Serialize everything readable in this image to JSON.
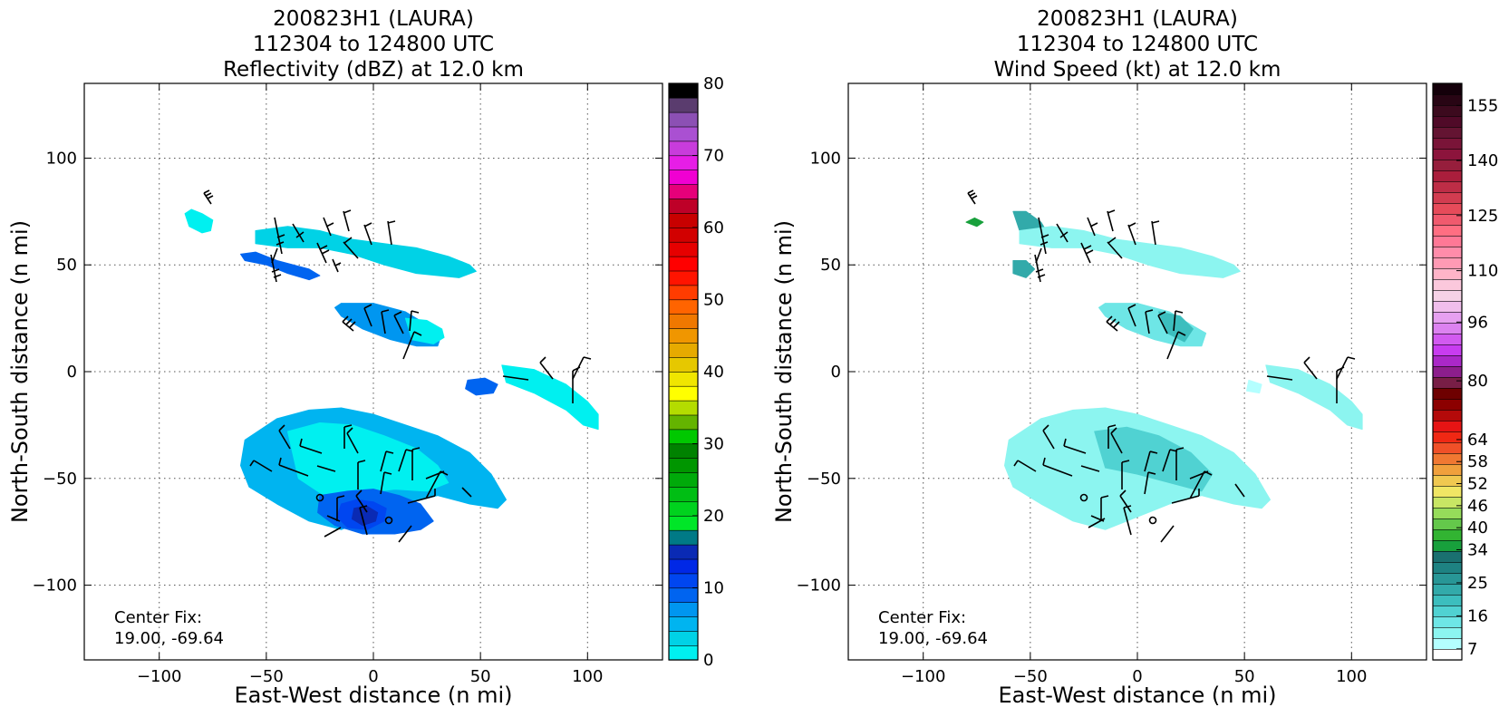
{
  "figure": {
    "panels": [
      {
        "title_lines": [
          "200823H1 (LAURA)",
          "112304 to 124800 UTC",
          "Reflectivity (dBZ) at 12.0 km"
        ],
        "xlabel": "East-West distance (n mi)",
        "ylabel": "North-South distance (n mi)",
        "center_fix_label": "Center Fix:",
        "center_fix_value": "19.00, -69.64"
      },
      {
        "title_lines": [
          "200823H1 (LAURA)",
          "112304 to 124800 UTC",
          "Wind Speed (kt) at 12.0 km"
        ],
        "xlabel": "East-West distance (n mi)",
        "ylabel": "North-South distance (n mi)",
        "center_fix_label": "Center Fix:",
        "center_fix_value": "19.00, -69.64"
      }
    ]
  },
  "chart_data": [
    {
      "type": "heatmap",
      "variable": "Reflectivity (dBZ)",
      "xlim": [
        -135,
        135
      ],
      "ylim": [
        -135,
        135
      ],
      "xticks": [
        -100,
        -50,
        0,
        50,
        100
      ],
      "yticks": [
        -100,
        -50,
        0,
        50,
        100
      ],
      "grid": true,
      "colorbar": {
        "min": 0,
        "max": 80,
        "step": 2.5,
        "tick_labels": [
          "0",
          "10",
          "20",
          "30",
          "40",
          "50",
          "60",
          "70",
          "80"
        ],
        "tick_values": [
          0,
          10,
          20,
          30,
          40,
          50,
          60,
          70,
          80
        ],
        "colors": [
          "#00f0f0",
          "#00d2e6",
          "#00b4f0",
          "#0096f0",
          "#0064f0",
          "#0046f0",
          "#0028e6",
          "#0a2ab4",
          "#007a86",
          "#00e628",
          "#00d21e",
          "#00be14",
          "#00aa0a",
          "#009600",
          "#008200",
          "#00c800",
          "#64b400",
          "#b4dc00",
          "#ffff00",
          "#f0e600",
          "#e6c800",
          "#e6aa00",
          "#f09600",
          "#f07800",
          "#ff6400",
          "#ff3c00",
          "#ff1400",
          "#ff0000",
          "#e60000",
          "#d20000",
          "#c80000",
          "#be0028",
          "#e6007a",
          "#f000d2",
          "#e61ee6",
          "#c83cdc",
          "#aa50d2",
          "#8c50b4",
          "#5a3c6e",
          "#000000"
        ]
      },
      "echo_regions": [
        {
          "x": [
            -88,
            -85,
            -80,
            -75,
            -76,
            -80,
            -86
          ],
          "y": [
            74,
            76,
            74,
            71,
            66,
            65,
            68
          ],
          "value": 1
        },
        {
          "x": [
            -60,
            -50,
            -40,
            -30,
            -25,
            -30,
            -45,
            -55,
            -62
          ],
          "y": [
            52,
            50,
            46,
            43,
            45,
            48,
            52,
            56,
            55
          ],
          "value": 12
        },
        {
          "x": [
            -55,
            -40,
            -25,
            -10,
            5,
            20,
            35,
            45,
            48,
            40,
            20,
            5,
            -10,
            -25,
            -40,
            -55
          ],
          "y": [
            66,
            68,
            66,
            62,
            60,
            58,
            54,
            50,
            47,
            44,
            46,
            50,
            55,
            58,
            58,
            60
          ],
          "value": 3
        },
        {
          "x": [
            -15,
            0,
            15,
            25,
            32,
            30,
            20,
            8,
            -5,
            -15,
            -18
          ],
          "y": [
            32,
            32,
            28,
            22,
            18,
            12,
            12,
            15,
            20,
            26,
            30
          ],
          "value": 9
        },
        {
          "x": [
            15,
            25,
            32,
            33,
            28,
            18
          ],
          "y": [
            25,
            24,
            20,
            16,
            13,
            15
          ],
          "value": 2
        },
        {
          "x": [
            60,
            75,
            90,
            100,
            105,
            105,
            98,
            90,
            75,
            62
          ],
          "y": [
            3,
            1,
            -6,
            -14,
            -20,
            -27,
            -25,
            -18,
            -10,
            -5
          ],
          "value": 1
        },
        {
          "x": [
            44,
            52,
            58,
            56,
            48,
            43
          ],
          "y": [
            -4,
            -3,
            -6,
            -10,
            -11,
            -8
          ],
          "value": 11
        },
        {
          "x": [
            -60,
            -45,
            -30,
            -15,
            0,
            15,
            30,
            45,
            55,
            62,
            58,
            45,
            30,
            15,
            0,
            -15,
            -30,
            -45,
            -58,
            -62
          ],
          "y": [
            -32,
            -22,
            -18,
            -17,
            -20,
            -25,
            -30,
            -38,
            -48,
            -60,
            -64,
            -62,
            -58,
            -62,
            -68,
            -74,
            -70,
            -62,
            -54,
            -44
          ],
          "value": 6
        },
        {
          "x": [
            -40,
            -25,
            -10,
            5,
            20,
            30,
            35,
            25,
            10,
            -5,
            -20,
            -35
          ],
          "y": [
            -28,
            -24,
            -25,
            -30,
            -36,
            -44,
            -52,
            -56,
            -55,
            -57,
            -60,
            -50
          ],
          "value": 2
        },
        {
          "x": [
            -25,
            -12,
            0,
            12,
            22,
            28,
            22,
            10,
            -5,
            -18,
            -26
          ],
          "y": [
            -58,
            -56,
            -55,
            -58,
            -62,
            -70,
            -74,
            -76,
            -76,
            -72,
            -66
          ],
          "value": 10
        },
        {
          "x": [
            -15,
            -8,
            0,
            6,
            5,
            -3,
            -12,
            -17
          ],
          "y": [
            -62,
            -60,
            -61,
            -64,
            -70,
            -74,
            -73,
            -68
          ],
          "value": 14
        },
        {
          "x": [
            -9,
            -3,
            2,
            1,
            -5,
            -10
          ],
          "y": [
            -64,
            -63,
            -66,
            -70,
            -72,
            -69
          ],
          "value": 18
        }
      ]
    },
    {
      "type": "heatmap",
      "variable": "Wind Speed (kt)",
      "xlim": [
        -135,
        135
      ],
      "ylim": [
        -135,
        135
      ],
      "xticks": [
        -100,
        -50,
        0,
        50,
        100
      ],
      "yticks": [
        -100,
        -50,
        0,
        50,
        100
      ],
      "grid": true,
      "colorbar": {
        "min": 4,
        "max": 161,
        "step": 3,
        "tick_labels": [
          "7",
          "16",
          "25",
          "34",
          "40",
          "46",
          "52",
          "58",
          "64",
          "80",
          "96",
          "110",
          "125",
          "140",
          "155"
        ],
        "tick_values": [
          7,
          16,
          25,
          34,
          40,
          46,
          52,
          58,
          64,
          80,
          96,
          110,
          125,
          140,
          155
        ],
        "colors": [
          "#ffffff",
          "#b4ffff",
          "#8cf5f0",
          "#6ee6e6",
          "#50d2d2",
          "#3cbebe",
          "#32aaaa",
          "#289696",
          "#1e8282",
          "#1a7070",
          "#18a03c",
          "#32b432",
          "#64c84b",
          "#96dc5a",
          "#c8e664",
          "#f0e664",
          "#f0c850",
          "#f0a03c",
          "#f07832",
          "#f05028",
          "#f02814",
          "#e61414",
          "#b40a0a",
          "#8c0000",
          "#6e0000",
          "#781e46",
          "#8c1e8c",
          "#aa28c8",
          "#c83cf0",
          "#d25af0",
          "#dc82f0",
          "#e6a0f0",
          "#f0beec",
          "#f5d2e6",
          "#fbc8dc",
          "#ffb4c8",
          "#ff9ab4",
          "#ff8caa",
          "#ff7896",
          "#ff6e82",
          "#f05a6e",
          "#e64b5a",
          "#d23c50",
          "#be2d46",
          "#aa1e3c",
          "#961e3c",
          "#8c143c",
          "#7a1438",
          "#641432",
          "#500a28",
          "#3c0a1e",
          "#280514",
          "#14000a"
        ]
      },
      "echo_regions": [
        {
          "x": [
            -80,
            -76,
            -72,
            -75
          ],
          "y": [
            70,
            72,
            70,
            68
          ],
          "value": 34
        },
        {
          "x": [
            -58,
            -52,
            -45,
            -42,
            -48,
            -55
          ],
          "y": [
            75,
            75,
            70,
            65,
            62,
            66
          ],
          "value": 22
        },
        {
          "x": [
            -55,
            -40,
            -25,
            -10,
            5,
            20,
            35,
            45,
            48,
            40,
            20,
            5,
            -10,
            -25,
            -40,
            -55
          ],
          "y": [
            66,
            68,
            66,
            62,
            60,
            58,
            54,
            50,
            47,
            44,
            46,
            50,
            55,
            58,
            58,
            60
          ],
          "value": 11
        },
        {
          "x": [
            -58,
            -52,
            -48,
            -52,
            -58
          ],
          "y": [
            52,
            52,
            48,
            44,
            46
          ],
          "value": 24
        },
        {
          "x": [
            -15,
            0,
            15,
            25,
            32,
            30,
            20,
            8,
            -5,
            -15,
            -18
          ],
          "y": [
            32,
            32,
            28,
            22,
            18,
            12,
            12,
            15,
            20,
            26,
            30
          ],
          "value": 14
        },
        {
          "x": [
            10,
            20,
            26,
            22,
            14
          ],
          "y": [
            28,
            26,
            20,
            14,
            18
          ],
          "value": 20
        },
        {
          "x": [
            60,
            75,
            90,
            100,
            105,
            105,
            98,
            90,
            75,
            62
          ],
          "y": [
            3,
            1,
            -6,
            -14,
            -20,
            -27,
            -25,
            -18,
            -10,
            -5
          ],
          "value": 12
        },
        {
          "x": [
            52,
            58,
            57,
            51
          ],
          "y": [
            -4,
            -6,
            -10,
            -9
          ],
          "value": 8
        },
        {
          "x": [
            -60,
            -45,
            -30,
            -15,
            0,
            15,
            30,
            45,
            55,
            62,
            58,
            45,
            30,
            15,
            0,
            -15,
            -30,
            -45,
            -58,
            -62
          ],
          "y": [
            -32,
            -22,
            -18,
            -17,
            -20,
            -25,
            -30,
            -38,
            -48,
            -60,
            -64,
            -62,
            -58,
            -62,
            -68,
            -74,
            -70,
            -62,
            -54,
            -44
          ],
          "value": 10
        },
        {
          "x": [
            -20,
            -5,
            10,
            25,
            35,
            30,
            15,
            0,
            -15
          ],
          "y": [
            -28,
            -26,
            -30,
            -38,
            -48,
            -56,
            -52,
            -48,
            -45
          ],
          "value": 16
        }
      ],
      "wind_barbs_present": true
    }
  ]
}
